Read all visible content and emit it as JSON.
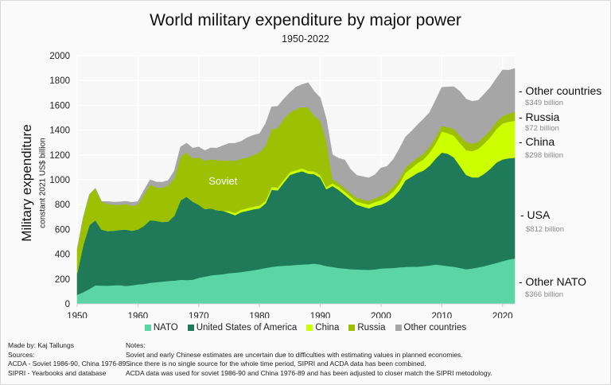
{
  "chart_data": {
    "type": "area",
    "stacked": true,
    "title": "World military expenditure by major power",
    "subtitle": "1950-2022",
    "ylabel": "Military expenditure",
    "ylabel_sub": "constant 2021 US$ billion",
    "xlabel": "",
    "ylim": [
      0,
      2000
    ],
    "yticks": [
      0,
      200,
      400,
      600,
      800,
      1000,
      1200,
      1400,
      1600,
      1800,
      2000
    ],
    "xlim": [
      1950,
      2022
    ],
    "xticks": [
      1950,
      1960,
      1970,
      1980,
      1990,
      2000,
      2010,
      2020
    ],
    "grid": true,
    "legend_position": "bottom",
    "x": [
      1950,
      1951,
      1952,
      1953,
      1954,
      1955,
      1956,
      1957,
      1958,
      1959,
      1960,
      1961,
      1962,
      1963,
      1964,
      1965,
      1966,
      1967,
      1968,
      1969,
      1970,
      1971,
      1972,
      1973,
      1974,
      1975,
      1976,
      1977,
      1978,
      1979,
      1980,
      1981,
      1982,
      1983,
      1984,
      1985,
      1986,
      1987,
      1988,
      1989,
      1990,
      1991,
      1992,
      1993,
      1994,
      1995,
      1996,
      1997,
      1998,
      1999,
      2000,
      2001,
      2002,
      2003,
      2004,
      2005,
      2006,
      2007,
      2008,
      2009,
      2010,
      2011,
      2012,
      2013,
      2014,
      2015,
      2016,
      2017,
      2018,
      2019,
      2020,
      2021,
      2022
    ],
    "series": [
      {
        "name": "NATO",
        "color": "#5bd4a6",
        "values": [
          74,
          95,
          120,
          150,
          148,
          147,
          150,
          152,
          145,
          150,
          157,
          160,
          170,
          175,
          180,
          185,
          188,
          195,
          192,
          195,
          210,
          220,
          230,
          235,
          240,
          248,
          252,
          258,
          265,
          272,
          280,
          290,
          298,
          305,
          308,
          310,
          315,
          318,
          320,
          325,
          318,
          305,
          298,
          290,
          285,
          280,
          278,
          276,
          275,
          278,
          285,
          288,
          290,
          295,
          298,
          300,
          300,
          305,
          310,
          318,
          312,
          305,
          300,
          290,
          280,
          285,
          295,
          305,
          318,
          330,
          345,
          358,
          366
        ]
      },
      {
        "name": "United States of America",
        "color": "#1f7a59",
        "values": [
          174,
          380,
          515,
          525,
          452,
          440,
          440,
          445,
          455,
          440,
          443,
          470,
          505,
          495,
          480,
          480,
          525,
          640,
          673,
          630,
          590,
          545,
          540,
          520,
          510,
          485,
          463,
          482,
          485,
          490,
          490,
          520,
          622,
          610,
          670,
          730,
          740,
          752,
          730,
          720,
          700,
          620,
          652,
          630,
          595,
          560,
          522,
          508,
          495,
          512,
          515,
          535,
          570,
          620,
          697,
          725,
          755,
          770,
          805,
          855,
          908,
          905,
          880,
          820,
          760,
          735,
          725,
          745,
          772,
          810,
          820,
          815,
          812
        ]
      },
      {
        "name": "China",
        "color": "#ccff00",
        "values": [
          0,
          0,
          0,
          0,
          0,
          0,
          0,
          0,
          0,
          0,
          0,
          0,
          0,
          0,
          0,
          0,
          0,
          0,
          0,
          0,
          0,
          0,
          0,
          0,
          0,
          15,
          18,
          20,
          22,
          22,
          22,
          22,
          22,
          22,
          22,
          22,
          22,
          22,
          22,
          22,
          20,
          18,
          22,
          24,
          25,
          25,
          26,
          28,
          30,
          32,
          35,
          40,
          45,
          52,
          60,
          70,
          80,
          90,
          105,
          120,
          170,
          165,
          175,
          185,
          200,
          210,
          230,
          245,
          255,
          270,
          290,
          295,
          298
        ]
      },
      {
        "name": "Russia",
        "color": "#9dc000",
        "values": [
          192,
          220,
          245,
          255,
          225,
          218,
          210,
          200,
          205,
          200,
          200,
          250,
          285,
          270,
          275,
          290,
          300,
          350,
          355,
          350,
          380,
          390,
          395,
          405,
          405,
          410,
          420,
          410,
          408,
          415,
          430,
          440,
          465,
          480,
          490,
          480,
          490,
          495,
          510,
          450,
          437,
          370,
          35,
          30,
          30,
          28,
          30,
          30,
          30,
          30,
          35,
          35,
          38,
          40,
          42,
          45,
          42,
          45,
          48,
          50,
          45,
          48,
          55,
          60,
          65,
          62,
          55,
          56,
          55,
          58,
          60,
          65,
          72
        ]
      },
      {
        "name": "Other countries",
        "color": "#a6a6a6",
        "values": [
          0,
          0,
          0,
          0,
          0,
          20,
          20,
          25,
          22,
          28,
          25,
          35,
          40,
          42,
          45,
          40,
          60,
          80,
          75,
          80,
          85,
          80,
          92,
          95,
          120,
          135,
          142,
          140,
          160,
          160,
          150,
          180,
          180,
          175,
          160,
          160,
          180,
          180,
          200,
          195,
          185,
          175,
          195,
          200,
          225,
          190,
          180,
          183,
          185,
          188,
          225,
          210,
          220,
          240,
          245,
          250,
          265,
          280,
          275,
          300,
          310,
          325,
          340,
          355,
          345,
          340,
          335,
          340,
          345,
          350,
          370,
          350,
          349
        ]
      }
    ],
    "annotations": [
      {
        "text": "Soviet",
        "x": 1974,
        "y": 960
      }
    ],
    "end_labels": [
      {
        "name": "- Other countries",
        "value": "$349 billion"
      },
      {
        "name": "- Russia",
        "value": "$72 billion"
      },
      {
        "name": "- China",
        "value": "$298 billion"
      },
      {
        "name": "- USA",
        "value": "$812 billion"
      },
      {
        "name": "- Other NATO",
        "value": "$366 billion"
      }
    ]
  },
  "legend": [
    {
      "label": "NATO",
      "color": "#5bd4a6"
    },
    {
      "label": "United States of America",
      "color": "#1f7a59"
    },
    {
      "label": "China",
      "color": "#ccff00"
    },
    {
      "label": "Russia",
      "color": "#9dc000"
    },
    {
      "label": "Other countries",
      "color": "#a6a6a6"
    }
  ],
  "footer": {
    "made_by": "Made by: Kaj Tallungs",
    "sources_label": "Sources:",
    "sources": [
      "ACDA - Soviet 1986-90, China 1976-89",
      "SIPRI - Yearbooks and database"
    ],
    "notes_label": "Notes:",
    "notes": [
      "Soviet and early Chinese estimates are uncertain due to difficulties with estimating values in planned economies.",
      "Since there is no single source for the whole time period, SIPRI and ACDA data has been combined.",
      "ACDA data was used for soviet 1986-90 and China 1976-89 and has been adjusted to closer match the SIPRI metodology."
    ]
  }
}
